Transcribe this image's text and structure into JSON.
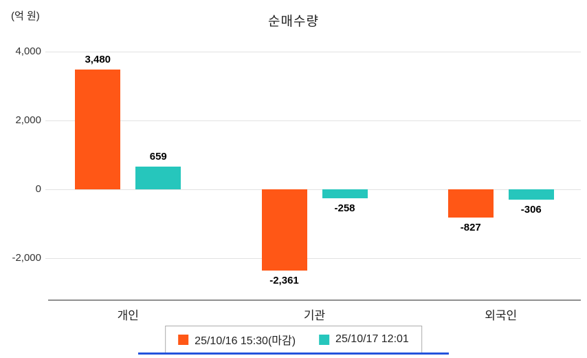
{
  "chart_data": {
    "type": "bar",
    "title": "순매수량",
    "unit_label": "(억 원)",
    "categories": [
      "개인",
      "기관",
      "외국인"
    ],
    "series": [
      {
        "name": "25/10/16 15:30(마감)",
        "color": "#FF5716",
        "values": [
          3480,
          -2361,
          -827
        ],
        "value_labels": [
          "3,480",
          "-2,361",
          "-827"
        ]
      },
      {
        "name": "25/10/17 12:01",
        "color": "#26C6BC",
        "values": [
          659,
          -258,
          -306
        ],
        "value_labels": [
          "659",
          "-258",
          "-306"
        ]
      }
    ],
    "yticks": [
      {
        "value": 4000,
        "label": "4,000"
      },
      {
        "value": 2000,
        "label": "2,000"
      },
      {
        "value": 0,
        "label": "0"
      },
      {
        "value": -2000,
        "label": "-2,000"
      }
    ],
    "ylim": [
      -3200,
      4400
    ],
    "grid": true,
    "legend_position": "bottom",
    "group_centers_pct": [
      15,
      50,
      85
    ],
    "accent_line_color": "#2453DC"
  }
}
